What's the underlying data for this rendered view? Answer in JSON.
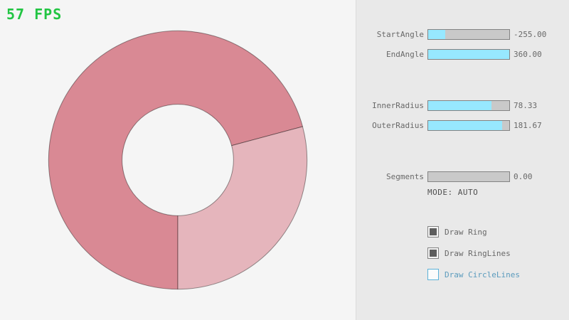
{
  "fps": {
    "text": "57 FPS"
  },
  "theme": {
    "bg": "#f5f5f5",
    "panel_bg": "#e9e9e9",
    "fps_green": "#22c543",
    "slider_track": "#c9c9c9",
    "slider_fill": "#97e8ff",
    "control_border": "#838383",
    "text_gray": "#686868",
    "check_fill": "#5e5e5e",
    "focus_border": "#5bb2d9",
    "focus_text": "#5b9bbd",
    "mode_color": "#505050",
    "ring_single": "#e5b5bc",
    "ring_double": "#d98994",
    "ring_outline": "rgba(0,0,0,0.4)"
  },
  "panel": {
    "sliders": [
      {
        "label": "StartAngle",
        "value": "-255.00",
        "fill": 0.21
      },
      {
        "label": "EndAngle",
        "value": "360.00",
        "fill": 1.0
      },
      {
        "label": "InnerRadius",
        "value": "78.33",
        "fill": 0.78
      },
      {
        "label": "OuterRadius",
        "value": "181.67",
        "fill": 0.91
      },
      {
        "label": "Segments",
        "value": "0.00",
        "fill": 0.0
      }
    ],
    "mode_text": "MODE: AUTO",
    "checkboxes": [
      {
        "label": "Draw Ring",
        "checked": true
      },
      {
        "label": "Draw RingLines",
        "checked": true
      },
      {
        "label": "Draw CircleLines",
        "checked": false
      }
    ]
  }
}
